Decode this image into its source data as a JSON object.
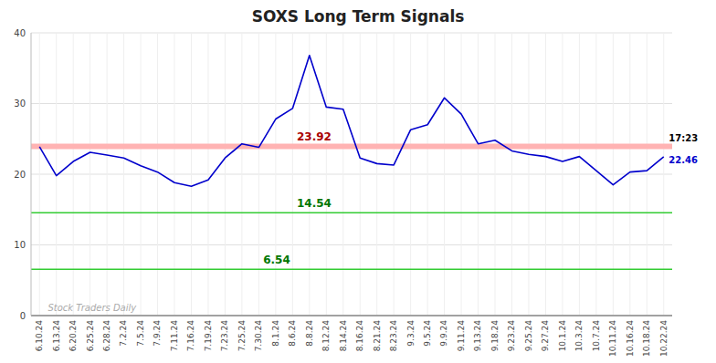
{
  "chart_data": {
    "type": "line",
    "title": "SOXS Long Term Signals",
    "categories": [
      "6.10.24",
      "6.13.24",
      "6.20.24",
      "6.25.24",
      "6.28.24",
      "7.2.24",
      "7.5.24",
      "7.9.24",
      "7.11.24",
      "7.16.24",
      "7.19.24",
      "7.23.24",
      "7.25.24",
      "7.30.24",
      "8.1.24",
      "8.6.24",
      "8.8.24",
      "8.12.24",
      "8.14.24",
      "8.16.24",
      "8.21.24",
      "8.23.24",
      "9.3.24",
      "9.5.24",
      "9.9.24",
      "9.11.24",
      "9.13.24",
      "9.18.24",
      "9.23.24",
      "9.25.24",
      "9.27.24",
      "10.1.24",
      "10.3.24",
      "10.7.24",
      "10.11.24",
      "10.16.24",
      "10.18.24",
      "10.22.24"
    ],
    "values": [
      23.9,
      19.8,
      21.8,
      23.1,
      22.7,
      22.3,
      21.2,
      20.3,
      18.8,
      18.3,
      19.2,
      22.3,
      24.3,
      23.8,
      27.8,
      29.3,
      36.8,
      29.5,
      29.2,
      22.3,
      21.5,
      21.3,
      26.3,
      27.0,
      30.8,
      28.5,
      24.3,
      24.8,
      23.3,
      22.8,
      22.5,
      21.8,
      22.5,
      20.5,
      18.5,
      20.3,
      20.5,
      22.46
    ],
    "color": "#0000cc",
    "hlines": [
      {
        "value": 23.92,
        "color": "#ffb3b3",
        "label_color": "#aa0000"
      },
      {
        "value": 14.54,
        "color": "#33cc33",
        "label_color": "#007700"
      },
      {
        "value": 6.54,
        "color": "#33cc33",
        "label_color": "#007700"
      }
    ],
    "annotations": [
      {
        "text": "17:23",
        "color": "#000000"
      },
      {
        "text": "22.46",
        "color": "#0000cc"
      }
    ],
    "watermark": "Stock Traders Daily",
    "ylim": [
      0,
      40
    ],
    "yticks": [
      0,
      10,
      20,
      30,
      40
    ],
    "grid": true
  }
}
